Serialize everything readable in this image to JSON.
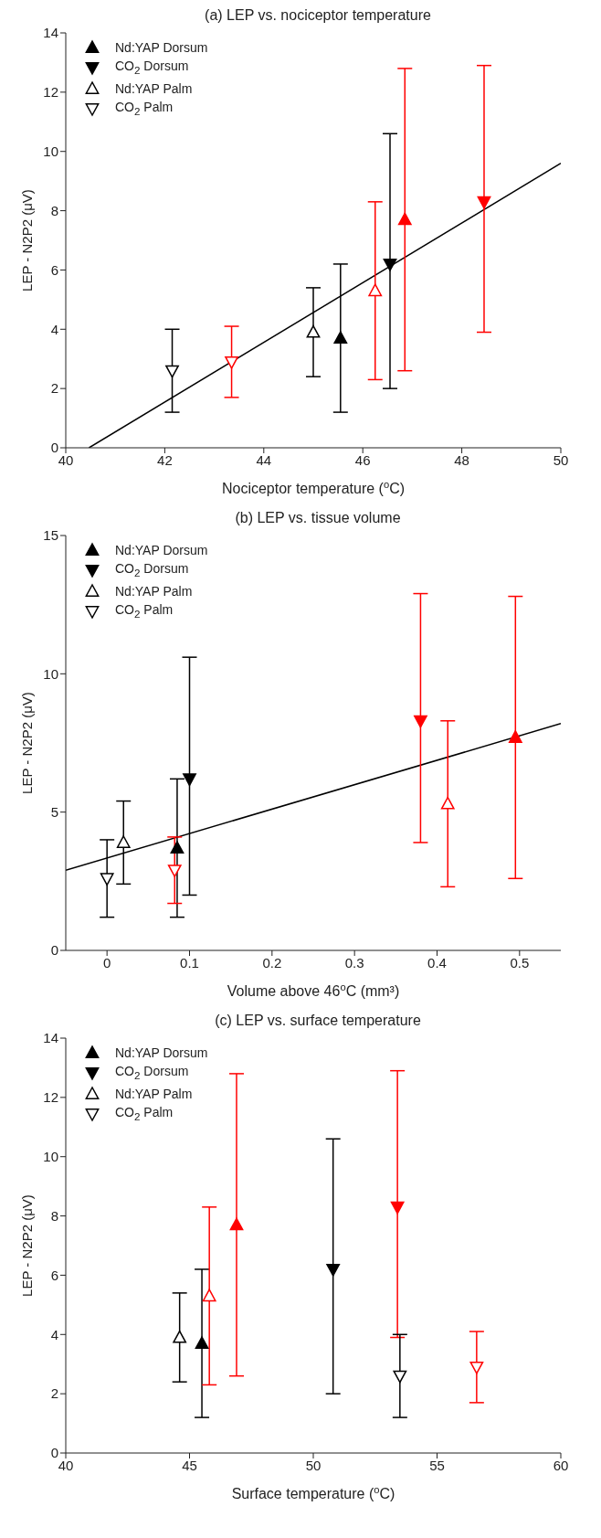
{
  "chart_data": [
    {
      "type": "scatter",
      "title": "(a) LEP vs. nociceptor temperature",
      "xlabel": "Nociceptor temperature ($^{o}$C)",
      "ylabel": "LEP - N2P2 (μV)",
      "xlim": [
        40,
        50
      ],
      "xticks": [
        40,
        42,
        44,
        46,
        48,
        50
      ],
      "ylim": [
        0,
        14
      ],
      "yticks": [
        0,
        2,
        4,
        6,
        8,
        10,
        12,
        14
      ],
      "grid": false,
      "legend": "top left",
      "series": [
        {
          "name": "Nd:YAP Dorsum",
          "color": "#000000",
          "colors": [
            "#000000",
            "#ff0000"
          ],
          "marker": "triangle",
          "x": [
            45.55,
            46.85
          ],
          "values": [
            3.7,
            7.7
          ],
          "errors": [
            [
              1.2,
              6.2
            ],
            [
              2.6,
              12.8
            ]
          ]
        },
        {
          "name": "CO$_{2}$ Dorsum",
          "color": "#000000",
          "colors": [
            "#000000",
            "#ff0000"
          ],
          "marker": "triangle-down",
          "x": [
            46.55,
            48.45
          ],
          "values": [
            6.2,
            8.3
          ],
          "errors": [
            [
              2.0,
              10.6
            ],
            [
              3.9,
              12.9
            ]
          ]
        },
        {
          "name": "Nd:YAP Palm",
          "color": "#000000",
          "colors": [
            "#000000",
            "#ff0000"
          ],
          "marker": "triangle-open",
          "x": [
            45.0,
            46.25
          ],
          "values": [
            3.9,
            5.3
          ],
          "errors": [
            [
              2.4,
              5.4
            ],
            [
              2.3,
              8.3
            ]
          ]
        },
        {
          "name": "CO$_{2}$ Palm",
          "color": "#000000",
          "colors": [
            "#000000",
            "#ff0000"
          ],
          "marker": "triangle-down-open",
          "x": [
            42.15,
            43.35
          ],
          "values": [
            2.6,
            2.9
          ],
          "errors": [
            [
              1.2,
              4.0
            ],
            [
              1.7,
              4.1
            ]
          ]
        },
        {
          "type": "line",
          "color": "#000000",
          "marker": "none",
          "x": [
            40.47,
            50
          ],
          "values": [
            0,
            9.6
          ]
        }
      ]
    },
    {
      "type": "scatter",
      "title": "(b) LEP vs. tissue volume",
      "xlabel": "Volume above 46$^{o}$C (mm³)",
      "ylabel": "LEP - N2P2 (μV)",
      "xlim": [
        -0.05,
        0.55
      ],
      "xticks": [
        0,
        0.1,
        0.2,
        0.3,
        0.4,
        0.5
      ],
      "ylim": [
        0,
        15
      ],
      "yticks": [
        0,
        5,
        10,
        15
      ],
      "grid": false,
      "legend": "top left",
      "series": [
        {
          "name": "Nd:YAP Dorsum",
          "color": "#000000",
          "colors": [
            "#000000",
            "#ff0000"
          ],
          "marker": "triangle",
          "x": [
            0.085,
            0.495
          ],
          "values": [
            3.7,
            7.7
          ],
          "errors": [
            [
              1.2,
              6.2
            ],
            [
              2.6,
              12.8
            ]
          ]
        },
        {
          "name": "CO$_{2}$ Dorsum",
          "color": "#000000",
          "colors": [
            "#000000",
            "#ff0000"
          ],
          "marker": "triangle-down",
          "x": [
            0.1,
            0.38
          ],
          "values": [
            6.2,
            8.3
          ],
          "errors": [
            [
              2.0,
              10.6
            ],
            [
              3.9,
              12.9
            ]
          ]
        },
        {
          "name": "Nd:YAP Palm",
          "color": "#000000",
          "colors": [
            "#000000",
            "#ff0000"
          ],
          "marker": "triangle-open",
          "x": [
            0.02,
            0.413
          ],
          "values": [
            3.9,
            5.3
          ],
          "errors": [
            [
              2.4,
              5.4
            ],
            [
              2.3,
              8.3
            ]
          ]
        },
        {
          "name": "CO$_{2}$ Palm",
          "color": "#000000",
          "colors": [
            "#000000",
            "#ff0000"
          ],
          "marker": "triangle-down-open",
          "x": [
            0,
            0.082
          ],
          "values": [
            2.6,
            2.9
          ],
          "errors": [
            [
              1.2,
              4.0
            ],
            [
              1.7,
              4.1
            ]
          ]
        },
        {
          "type": "line",
          "color": "#000000",
          "marker": "none",
          "x": [
            -0.05,
            0.55
          ],
          "values": [
            2.9,
            8.2
          ]
        }
      ]
    },
    {
      "type": "scatter",
      "title": "(c) LEP vs. surface temperature",
      "xlabel": "Surface temperature ($^{o}$C)",
      "ylabel": "LEP - N2P2 (μV)",
      "xlim": [
        40,
        60
      ],
      "xticks": [
        40,
        45,
        50,
        55,
        60
      ],
      "ylim": [
        0,
        14
      ],
      "yticks": [
        0,
        2,
        4,
        6,
        8,
        10,
        12,
        14
      ],
      "grid": false,
      "legend": "top left",
      "series": [
        {
          "name": "Nd:YAP Dorsum",
          "color": "#000000",
          "colors": [
            "#000000",
            "#ff0000"
          ],
          "marker": "triangle",
          "x": [
            45.5,
            46.9
          ],
          "values": [
            3.7,
            7.7
          ],
          "errors": [
            [
              1.2,
              6.2
            ],
            [
              2.6,
              12.8
            ]
          ]
        },
        {
          "name": "CO$_{2}$ Dorsum",
          "color": "#000000",
          "colors": [
            "#000000",
            "#ff0000"
          ],
          "marker": "triangle-down",
          "x": [
            50.8,
            53.4
          ],
          "values": [
            6.2,
            8.3
          ],
          "errors": [
            [
              2.0,
              10.6
            ],
            [
              3.9,
              12.9
            ]
          ]
        },
        {
          "name": "Nd:YAP Palm",
          "color": "#000000",
          "colors": [
            "#000000",
            "#ff0000"
          ],
          "marker": "triangle-open",
          "x": [
            44.6,
            45.8
          ],
          "values": [
            3.9,
            5.3
          ],
          "errors": [
            [
              2.4,
              5.4
            ],
            [
              2.3,
              8.3
            ]
          ]
        },
        {
          "name": "CO$_{2}$ Palm",
          "color": "#000000",
          "colors": [
            "#000000",
            "#ff0000"
          ],
          "marker": "triangle-down-open",
          "x": [
            53.5,
            56.6
          ],
          "values": [
            2.6,
            2.9
          ],
          "errors": [
            [
              1.2,
              4.0
            ],
            [
              1.7,
              4.1
            ]
          ]
        }
      ]
    }
  ]
}
